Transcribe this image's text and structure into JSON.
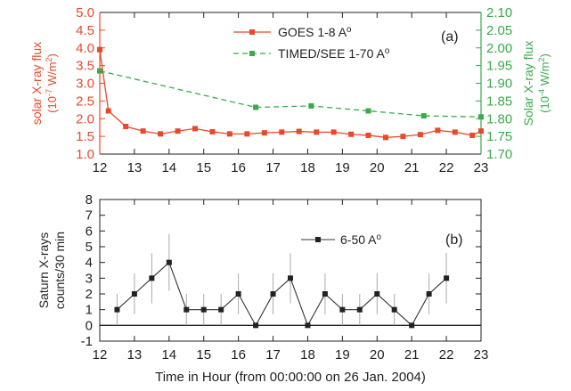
{
  "chart_data": [
    {
      "type": "line",
      "panel_label": "(a)",
      "xlim": [
        12,
        23
      ],
      "x_ticks": [
        12,
        13,
        14,
        15,
        16,
        17,
        18,
        19,
        20,
        21,
        22,
        23
      ],
      "ylabel_left": [
        "solar X-ray flux",
        "(10",
        "-7",
        " W/m",
        "2",
        ")"
      ],
      "ylabel_right": [
        "Solar X-ray flux",
        "(10",
        "-4",
        " W/m",
        "2",
        ")"
      ],
      "ylim_left": [
        1.0,
        5.0
      ],
      "y_ticks_left": [
        "1.0",
        "1.5",
        "2.0",
        "2.5",
        "3.0",
        "3.5",
        "4.0",
        "4.5",
        "5.0"
      ],
      "ylim_right": [
        1.7,
        2.1
      ],
      "y_ticks_right": [
        "1.70",
        "1.75",
        "1.80",
        "1.85",
        "1.90",
        "1.95",
        "2.00",
        "2.05",
        "2.10"
      ],
      "left_color": "#e8492b",
      "right_color": "#3aaa4a",
      "legend_position": "top-center",
      "series": [
        {
          "name": "GOES 1-8 A",
          "name_superscript": "o",
          "axis": "left",
          "color": "#e8492b",
          "marker": "square",
          "line": "solid",
          "x": [
            12.0,
            12.25,
            12.75,
            13.25,
            13.75,
            14.25,
            14.75,
            15.25,
            15.75,
            16.25,
            16.75,
            17.25,
            17.75,
            18.25,
            18.75,
            19.25,
            19.75,
            20.25,
            20.75,
            21.25,
            21.75,
            22.25,
            22.75,
            23.0
          ],
          "values": [
            3.95,
            2.22,
            1.78,
            1.65,
            1.57,
            1.65,
            1.72,
            1.63,
            1.57,
            1.57,
            1.6,
            1.62,
            1.64,
            1.62,
            1.62,
            1.56,
            1.53,
            1.47,
            1.5,
            1.55,
            1.67,
            1.62,
            1.53,
            1.65
          ]
        },
        {
          "name": "TIMED/SEE 1-70 A",
          "name_superscript": "o",
          "axis": "right",
          "color": "#3aaa4a",
          "marker": "square",
          "line": "dashed",
          "x": [
            12.0,
            16.5,
            18.1,
            19.75,
            21.35,
            23.0
          ],
          "values": [
            1.935,
            1.832,
            1.836,
            1.822,
            1.808,
            1.805
          ]
        }
      ]
    },
    {
      "type": "line",
      "panel_label": "(b)",
      "xlabel": "Time in Hour  (from 00:00:00 on 26 Jan. 2004)",
      "ylabel": [
        "Saturn X-rays",
        "counts/30 min"
      ],
      "xlim": [
        12,
        23
      ],
      "x_ticks": [
        12,
        13,
        14,
        15,
        16,
        17,
        18,
        19,
        20,
        21,
        22,
        23
      ],
      "ylim": [
        -1,
        8
      ],
      "y_ticks": [
        -1,
        0,
        1,
        2,
        3,
        4,
        5,
        6,
        7,
        8
      ],
      "legend_position": "top-right",
      "series": [
        {
          "name": "6-50 A",
          "name_superscript": "o",
          "color": "#333333",
          "marker": "square",
          "line": "solid",
          "x": [
            12.5,
            13.0,
            13.5,
            14.0,
            14.5,
            15.0,
            15.5,
            16.0,
            16.5,
            17.0,
            17.5,
            18.0,
            18.5,
            19.0,
            19.5,
            20.0,
            20.5,
            21.0,
            21.5,
            22.0
          ],
          "values": [
            1,
            2,
            3,
            4,
            1,
            1,
            1,
            2,
            0,
            2,
            3,
            0,
            2,
            1,
            1,
            2,
            1,
            0,
            2,
            3
          ],
          "error": [
            1.0,
            1.3,
            1.6,
            1.8,
            1.0,
            1.0,
            1.0,
            1.3,
            0.0,
            1.3,
            1.6,
            0.0,
            1.3,
            1.0,
            1.0,
            1.3,
            1.0,
            0.0,
            1.3,
            1.6
          ]
        }
      ]
    }
  ]
}
